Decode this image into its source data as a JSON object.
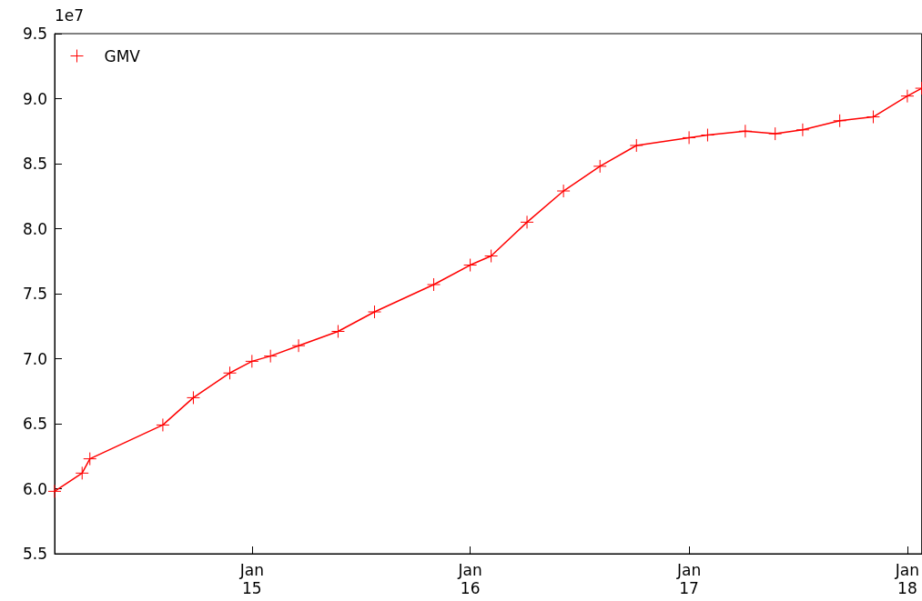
{
  "chart_data": {
    "type": "line",
    "annotations": [
      "1e7"
    ],
    "x": [
      "2014-02-05",
      "2014-03-23",
      "2014-04-05",
      "2014-08-05",
      "2014-09-25",
      "2014-11-25",
      "2015-01-01",
      "2015-02-01",
      "2015-03-20",
      "2015-05-25",
      "2015-07-25",
      "2015-11-01",
      "2016-01-01",
      "2016-02-05",
      "2016-04-05",
      "2016-06-05",
      "2016-08-05",
      "2016-10-05",
      "2017-01-01",
      "2017-02-01",
      "2017-04-05",
      "2017-05-25",
      "2017-07-10",
      "2017-09-10",
      "2017-11-05",
      "2018-01-01",
      "2018-01-25"
    ],
    "series": [
      {
        "name": "GMV",
        "color": "#ff0000",
        "values": [
          5.98,
          6.12,
          6.23,
          6.49,
          6.7,
          6.89,
          6.98,
          7.02,
          7.1,
          7.21,
          7.36,
          7.57,
          7.72,
          7.79,
          8.05,
          8.29,
          8.48,
          8.64,
          8.7,
          8.72,
          8.75,
          8.73,
          8.76,
          8.83,
          8.86,
          9.02,
          9.08
        ]
      }
    ],
    "xlim": [
      "2014-02-05",
      "2018-01-25"
    ],
    "xticks": [
      {
        "value": "2015-01-01",
        "label": "Jan\n15"
      },
      {
        "value": "2016-01-01",
        "label": "Jan\n16"
      },
      {
        "value": "2017-01-01",
        "label": "Jan\n17"
      },
      {
        "value": "2018-01-01",
        "label": "Jan\n18"
      }
    ],
    "ylim": [
      5.5,
      9.5
    ],
    "yticks": [
      {
        "value": 5.5,
        "label": "5.5"
      },
      {
        "value": 6,
        "label": "6.0"
      },
      {
        "value": 6.5,
        "label": "6.5"
      },
      {
        "value": 7,
        "label": "7.0"
      },
      {
        "value": 7.5,
        "label": "7.5"
      },
      {
        "value": 8,
        "label": "8.0"
      },
      {
        "value": 8.5,
        "label": "8.5"
      },
      {
        "value": 9,
        "label": "9.0"
      },
      {
        "value": 9.5,
        "label": "9.5"
      }
    ],
    "grid": false,
    "legend": "top left",
    "marker": "cross",
    "line_style": "solid"
  }
}
